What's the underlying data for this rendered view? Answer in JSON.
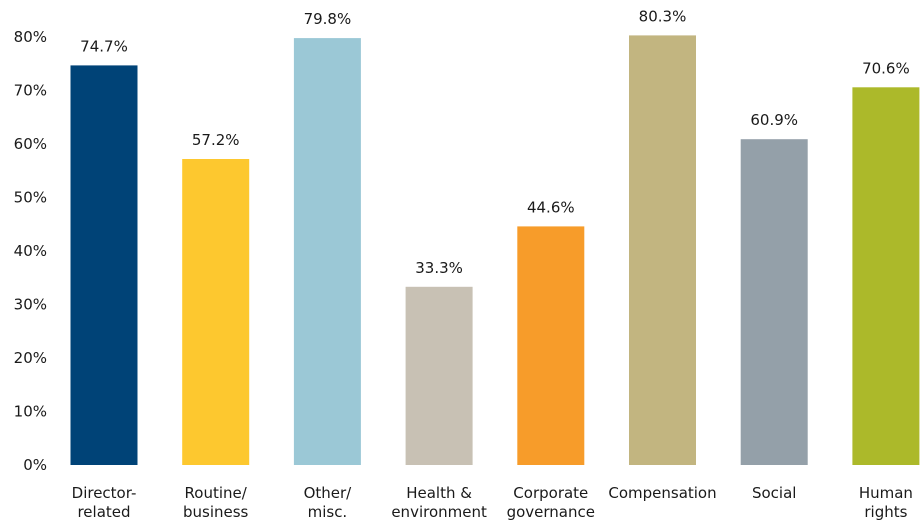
{
  "chart_data": {
    "type": "bar",
    "title": "",
    "xlabel": "",
    "ylabel": "",
    "ylim": [
      0,
      80
    ],
    "y_ticks": [
      "0%",
      "10%",
      "20%",
      "30%",
      "40%",
      "50%",
      "60%",
      "70%",
      "80%"
    ],
    "y_tick_values": [
      0,
      10,
      20,
      30,
      40,
      50,
      60,
      70,
      80
    ],
    "grid": false,
    "legend": "none",
    "categories": [
      [
        "Director-",
        "related"
      ],
      [
        "Routine/",
        "business"
      ],
      [
        "Other/",
        "misc."
      ],
      [
        "Health &",
        "environment"
      ],
      [
        "Corporate",
        "governance"
      ],
      [
        "Compensation"
      ],
      [
        "Social"
      ],
      [
        "Human",
        "rights"
      ]
    ],
    "values": [
      74.7,
      57.2,
      79.8,
      33.3,
      44.6,
      80.3,
      60.9,
      70.6
    ],
    "data_labels": [
      "74.7%",
      "57.2%",
      "79.8%",
      "33.3%",
      "44.6%",
      "80.3%",
      "60.9%",
      "70.6%"
    ],
    "colors": [
      "#004377",
      "#fdc82f",
      "#9bc8d6",
      "#c8c1b4",
      "#f79c2a",
      "#c2b580",
      "#94a0a9",
      "#acb92a"
    ]
  }
}
